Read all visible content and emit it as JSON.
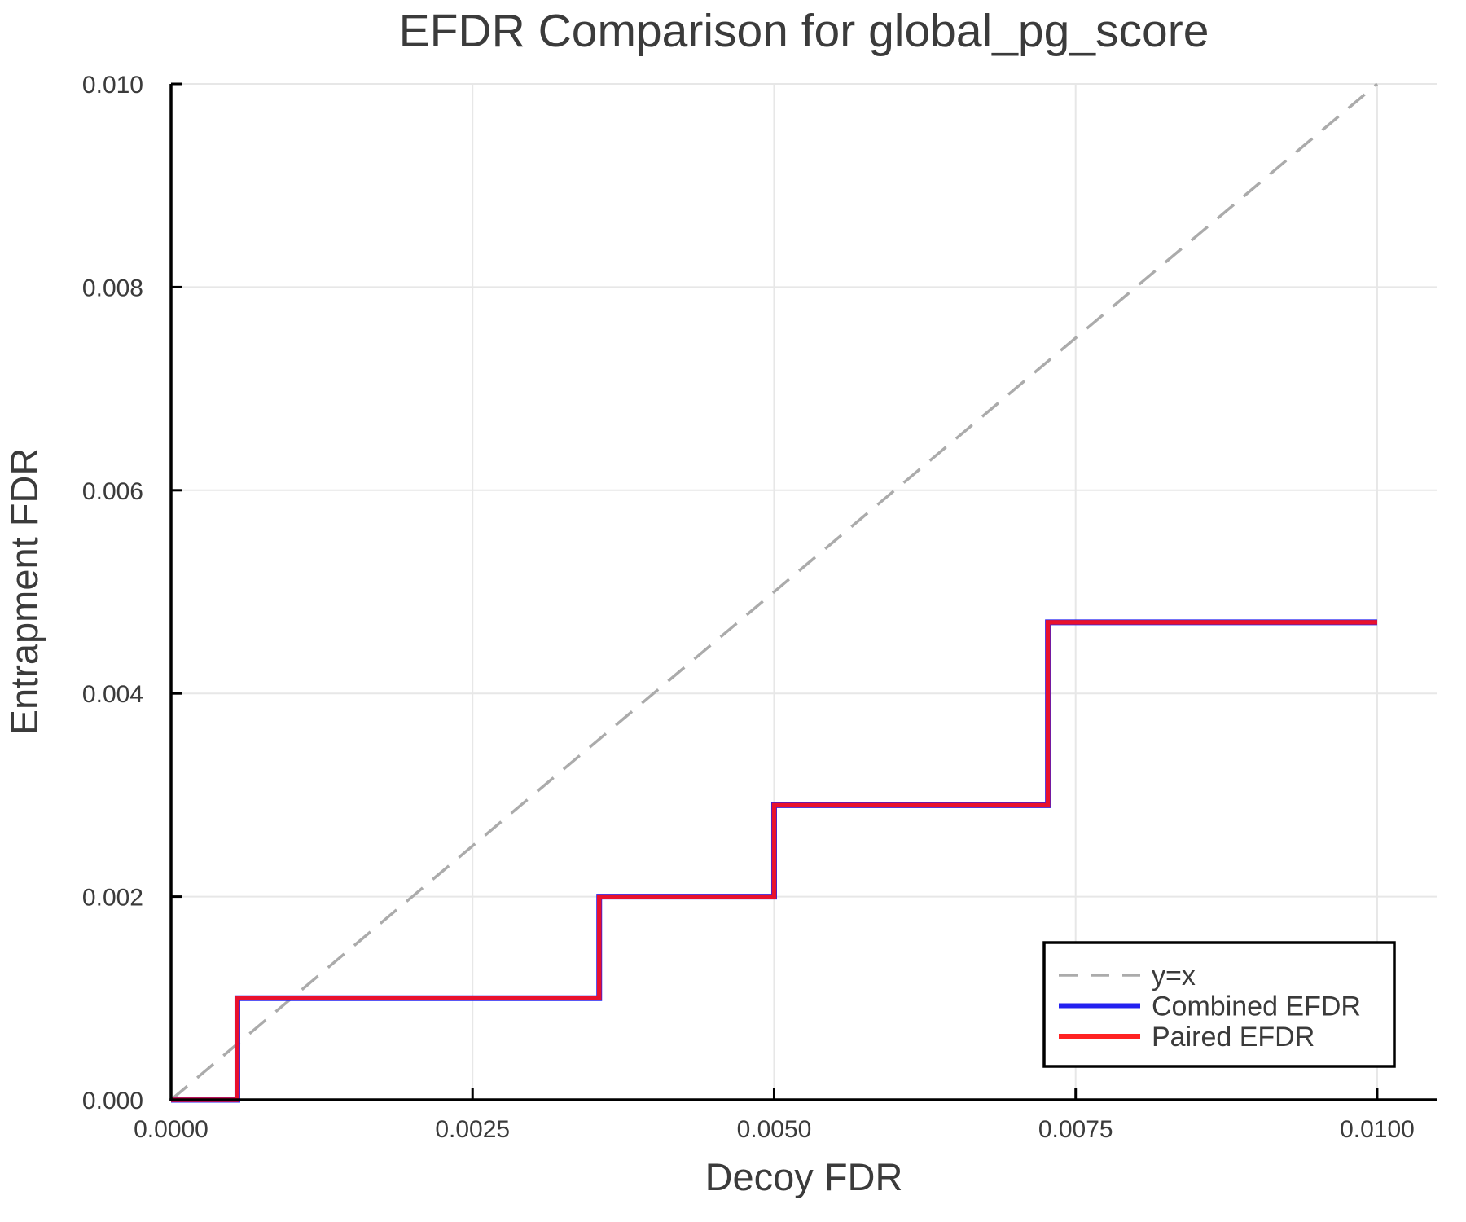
{
  "title": "EFDR Comparison for global_pg_score",
  "colors": {
    "background": "#ffffff",
    "text": "#3b3b3b",
    "spine": "#000000",
    "grid": "#e7e7e7",
    "identity_line": "#ababab",
    "combined_efdr": "#2321f0",
    "paired_efdr": "#e8112d",
    "paired_efdr_legend": "#ff2222",
    "legend_border": "#000000",
    "legend_background": "#ffffff"
  },
  "chart_data": {
    "type": "line",
    "title": "EFDR Comparison for global_pg_score",
    "xlabel": "Decoy FDR",
    "ylabel": "Entrapment FDR",
    "xlim": [
      0,
      0.0105
    ],
    "ylim": [
      0,
      0.01
    ],
    "grid": true,
    "legend_position": "bottom-right",
    "x_ticks": [
      0.0,
      0.0025,
      0.005,
      0.0075,
      0.01
    ],
    "x_tick_labels": [
      "0.0000",
      "0.0025",
      "0.0050",
      "0.0075",
      "0.0100"
    ],
    "y_ticks": [
      0.0,
      0.002,
      0.004,
      0.006,
      0.008,
      0.01
    ],
    "y_tick_labels": [
      "0.000",
      "0.002",
      "0.004",
      "0.006",
      "0.008",
      "0.010"
    ],
    "reference_line": {
      "label": "y=x",
      "style": "dashed",
      "color": "#ababab",
      "from": [
        0,
        0
      ],
      "to": [
        0.01,
        0.01
      ]
    },
    "series": [
      {
        "name": "Combined EFDR",
        "color": "#2321f0",
        "legend_color": "#2321f0",
        "line_width": 7,
        "x": [
          0,
          0.00055,
          0.00055,
          0.00355,
          0.00355,
          0.005,
          0.005,
          0.00727,
          0.00727,
          0.01
        ],
        "y": [
          0,
          0,
          0.001,
          0.001,
          0.002,
          0.002,
          0.0029,
          0.0029,
          0.0047,
          0.0047
        ]
      },
      {
        "name": "Paired EFDR",
        "color": "#e8112d",
        "legend_color": "#ff2222",
        "line_width": 5.5,
        "x": [
          0,
          0.00055,
          0.00055,
          0.00355,
          0.00355,
          0.005,
          0.005,
          0.00727,
          0.00727,
          0.01
        ],
        "y": [
          0,
          0,
          0.001,
          0.001,
          0.002,
          0.002,
          0.0029,
          0.0029,
          0.0047,
          0.0047
        ]
      }
    ]
  },
  "legend": {
    "entry_labels": [
      "y=x",
      "Combined EFDR",
      "Paired EFDR"
    ]
  }
}
